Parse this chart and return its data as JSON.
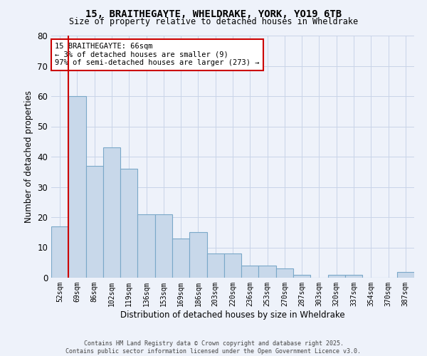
{
  "title_line1": "15, BRAITHEGAYTE, WHELDRAKE, YORK, YO19 6TB",
  "title_line2": "Size of property relative to detached houses in Wheldrake",
  "xlabel": "Distribution of detached houses by size in Wheldrake",
  "ylabel": "Number of detached properties",
  "categories": [
    "52sqm",
    "69sqm",
    "86sqm",
    "102sqm",
    "119sqm",
    "136sqm",
    "153sqm",
    "169sqm",
    "186sqm",
    "203sqm",
    "220sqm",
    "236sqm",
    "253sqm",
    "270sqm",
    "287sqm",
    "303sqm",
    "320sqm",
    "337sqm",
    "354sqm",
    "370sqm",
    "387sqm"
  ],
  "values": [
    17,
    60,
    37,
    43,
    36,
    21,
    21,
    13,
    15,
    8,
    8,
    4,
    4,
    3,
    1,
    0,
    1,
    1,
    0,
    0,
    2
  ],
  "bar_color": "#c8d8ea",
  "bar_edge_color": "#7aa8c8",
  "grid_color": "#c8d4e8",
  "background_color": "#eef2fa",
  "vline_color": "#cc0000",
  "annotation_text": "15 BRAITHEGAYTE: 66sqm\n← 3% of detached houses are smaller (9)\n97% of semi-detached houses are larger (273) →",
  "annotation_box_color": "#ffffff",
  "annotation_box_edge": "#cc0000",
  "ylim": [
    0,
    80
  ],
  "yticks": [
    0,
    10,
    20,
    30,
    40,
    50,
    60,
    70,
    80
  ],
  "footer_line1": "Contains HM Land Registry data © Crown copyright and database right 2025.",
  "footer_line2": "Contains public sector information licensed under the Open Government Licence v3.0."
}
